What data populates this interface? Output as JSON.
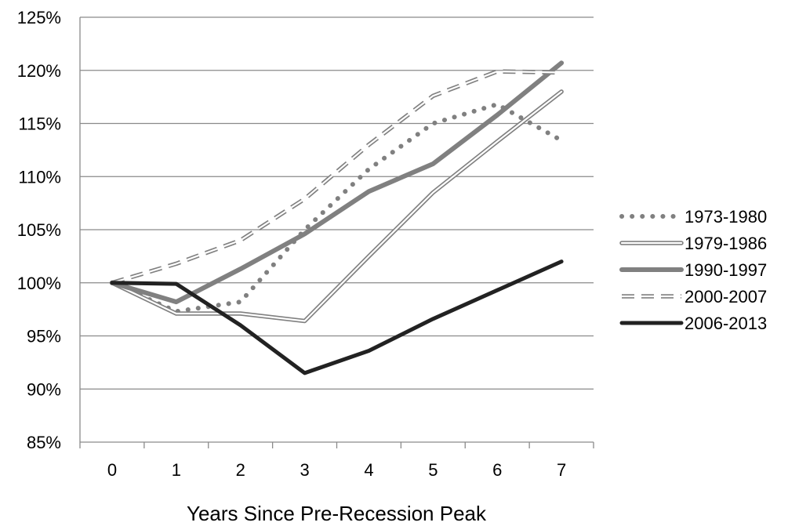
{
  "chart_data": {
    "type": "line",
    "title": "",
    "xlabel": "Years Since Pre-Recession Peak",
    "ylabel": "",
    "x": [
      0,
      1,
      2,
      3,
      4,
      5,
      6,
      7
    ],
    "x_tick_labels": [
      "0",
      "1",
      "2",
      "3",
      "4",
      "5",
      "6",
      "7"
    ],
    "ylim": [
      85,
      125
    ],
    "y_ticks": [
      85,
      90,
      95,
      100,
      105,
      110,
      115,
      120,
      125
    ],
    "y_tick_labels": [
      "85%",
      "90%",
      "95%",
      "100%",
      "105%",
      "110%",
      "115%",
      "120%",
      "125%"
    ],
    "grid": "horizontal",
    "legend_position": "right",
    "series": [
      {
        "name": "1973-1980",
        "style": "dotted",
        "color": "#808080",
        "values": [
          100,
          97.3,
          98.2,
          105.0,
          110.7,
          115.0,
          116.8,
          113.4
        ]
      },
      {
        "name": "1979-1986",
        "style": "double",
        "color": "#808080",
        "values": [
          100,
          97.1,
          97.1,
          96.4,
          102.5,
          108.5,
          113.3,
          118.0
        ]
      },
      {
        "name": "1990-1997",
        "style": "thick",
        "color": "#808080",
        "values": [
          100,
          98.2,
          101.3,
          104.6,
          108.6,
          111.2,
          115.8,
          120.7
        ]
      },
      {
        "name": "2000-2007",
        "style": "dashed-double",
        "color": "#808080",
        "values": [
          100,
          101.8,
          104.0,
          107.9,
          113.0,
          117.6,
          119.9,
          119.8
        ]
      },
      {
        "name": "2006-2013",
        "style": "solid",
        "color": "#222222",
        "values": [
          100,
          99.9,
          96.0,
          91.5,
          93.6,
          96.6,
          99.3,
          102.0
        ]
      }
    ]
  }
}
